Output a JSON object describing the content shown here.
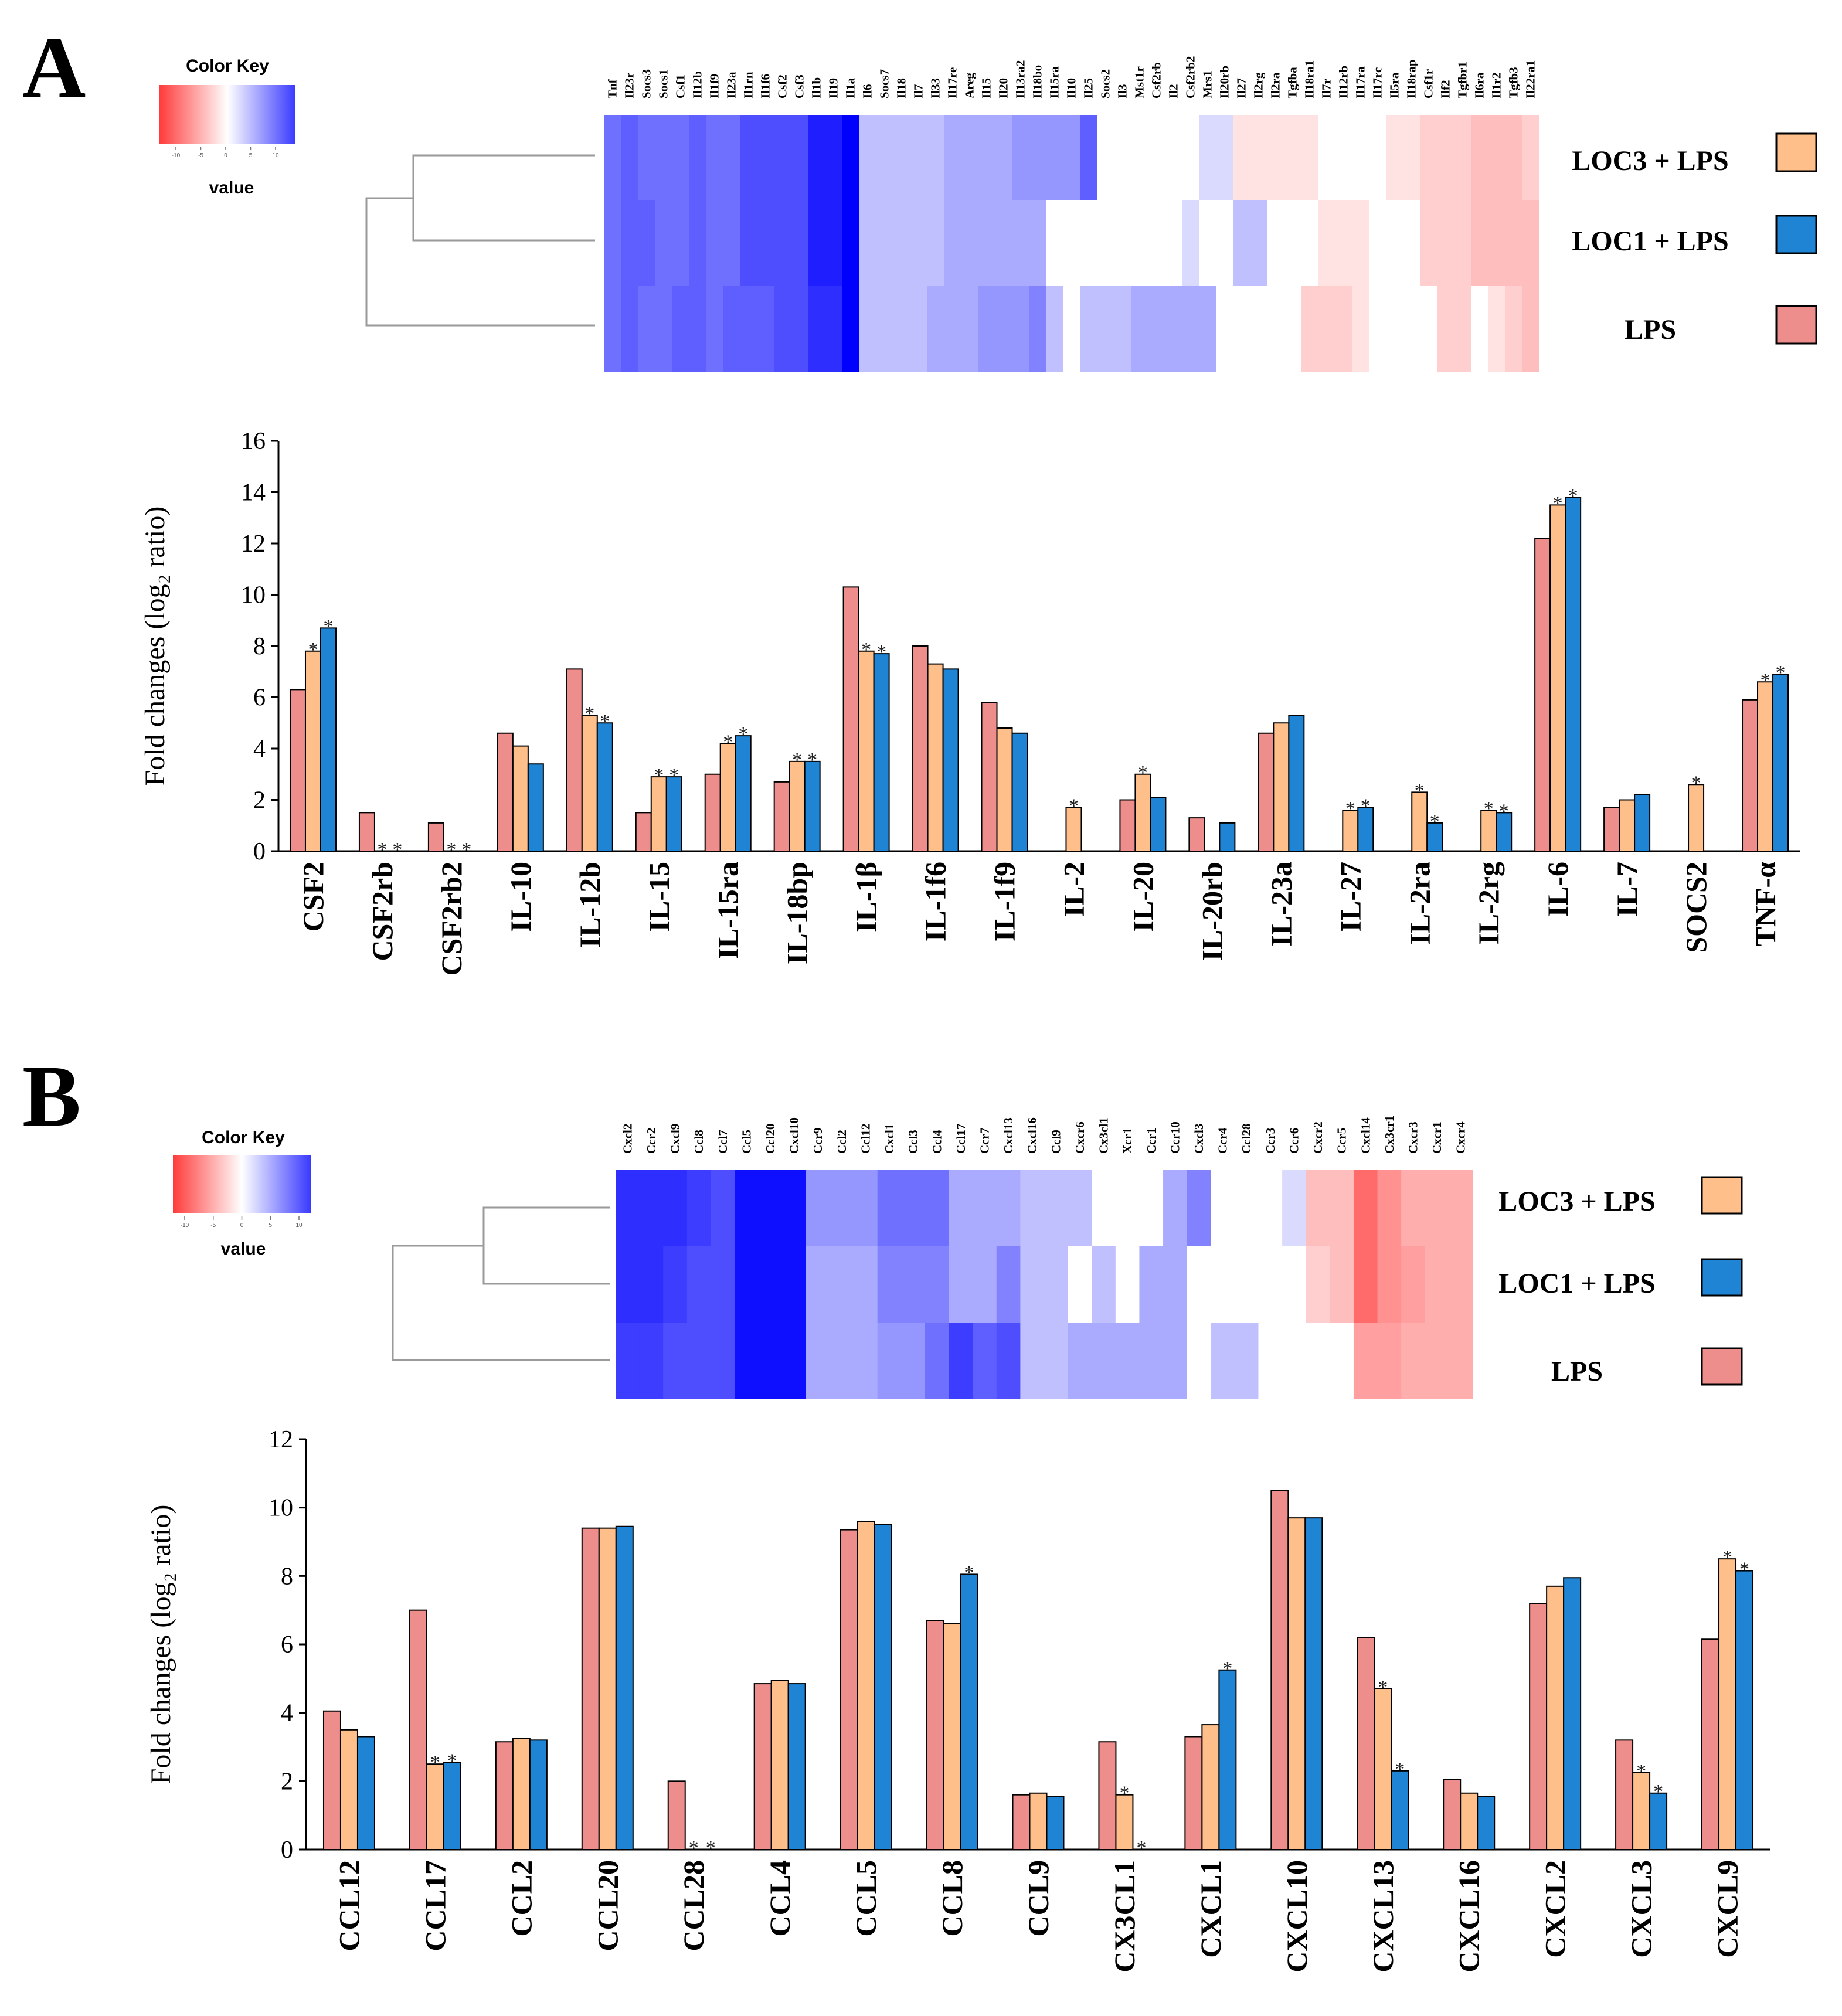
{
  "colors": {
    "LPS": "#EE8E8C",
    "LOC3 + LPS": "#FFBF8A",
    "LOC1 + LPS": "#1F84D4",
    "heat_low": "#FF3B3B",
    "heat_mid": "#FFFFFF",
    "heat_high": "#0000FF",
    "axis": "#000000"
  },
  "panelA": {
    "label": "A",
    "color_key": {
      "title": "Color Key",
      "value_label": "value",
      "ticks": [
        "-10",
        "-5",
        "0",
        "5",
        "10"
      ]
    },
    "heatmap": {
      "columns": [
        "Tnf",
        "Il23r",
        "Socs3",
        "Socs1",
        "Csf1",
        "Il12b",
        "Il1f9",
        "Il23a",
        "Il1rn",
        "Il1f6",
        "Csf2",
        "Csf3",
        "Il1b",
        "Il19",
        "Il1a",
        "Il6",
        "Socs7",
        "Il18",
        "Il7",
        "Il33",
        "Il17re",
        "Areg",
        "Il15",
        "Il20",
        "Il13ra2",
        "Il18bo",
        "Il15ra",
        "Il10",
        "Il25",
        "Socs2",
        "Il3",
        "Mst1r",
        "Csf2rb",
        "Il2",
        "Csf2rb2",
        "Mrs1",
        "Il20rb",
        "Il27",
        "Il2rg",
        "Il2ra",
        "Tgfba",
        "Il18ra1",
        "Il7r",
        "Il12rb",
        "Il17ra",
        "Il17rc",
        "Il5ra",
        "Il18rap",
        "Csf1r",
        "Ilf2",
        "Tgfbr1",
        "Il6ra",
        "Il1r2",
        "Tgfb3",
        "Il22ra1"
      ],
      "rows": [
        "LOC3 + LPS",
        "LOC1 + LPS",
        "LPS"
      ],
      "values": [
        [
          6,
          7,
          6,
          6,
          6,
          7,
          6,
          6,
          8,
          8,
          8,
          8,
          11,
          11,
          13,
          2,
          2,
          2,
          2,
          2,
          3,
          3,
          3,
          3,
          4,
          4,
          4,
          4,
          7,
          0,
          0,
          0,
          0,
          0,
          0,
          1,
          1,
          -1,
          -1,
          -1,
          -1,
          -1,
          0,
          0,
          0,
          0,
          -1,
          -1,
          -2,
          -2,
          -2,
          -3,
          -3,
          -3,
          -2
        ],
        [
          6,
          7,
          7,
          6,
          6,
          7,
          6,
          6,
          8,
          8,
          8,
          8,
          11,
          11,
          13,
          2,
          2,
          2,
          2,
          2,
          3,
          3,
          3,
          3,
          3,
          3,
          0,
          0,
          0,
          0,
          0,
          0,
          0,
          0,
          1,
          0,
          0,
          2,
          2,
          0,
          0,
          0,
          -1,
          -1,
          -1,
          0,
          0,
          0,
          -2,
          -2,
          -2,
          -3,
          -3,
          -3,
          -3
        ],
        [
          6,
          7,
          6,
          6,
          7,
          7,
          6,
          7,
          7,
          7,
          8,
          8,
          10,
          10,
          13,
          2,
          2,
          2,
          2,
          3,
          3,
          3,
          4,
          4,
          4,
          5,
          2,
          0,
          2,
          2,
          2,
          3,
          3,
          3,
          3,
          3,
          0,
          0,
          0,
          0,
          0,
          -2,
          -2,
          -2,
          -1,
          0,
          0,
          0,
          0,
          -2,
          -2,
          0,
          -1,
          -2,
          -3
        ]
      ]
    },
    "chart_data": {
      "type": "bar",
      "categories": [
        "CSF2",
        "CSF2rb",
        "CSF2rb2",
        "IL-10",
        "IL-12b",
        "IL-15",
        "IL-15ra",
        "IL-18bp",
        "IL-1β",
        "IL-1f6",
        "IL-1f9",
        "IL-2",
        "IL-20",
        "IL-20rb",
        "IL-23a",
        "IL-27",
        "IL-2ra",
        "IL-2rg",
        "IL-6",
        "IL-7",
        "SOCS2",
        "TNF-α"
      ],
      "series": [
        {
          "name": "LPS",
          "values": [
            6.3,
            1.5,
            1.1,
            4.6,
            7.1,
            1.5,
            3.0,
            2.7,
            10.3,
            8.0,
            5.8,
            0,
            2.0,
            1.3,
            4.6,
            0,
            0,
            0,
            12.2,
            1.7,
            0,
            5.9
          ]
        },
        {
          "name": "LOC3 + LPS",
          "values": [
            7.8,
            0,
            0,
            4.1,
            5.3,
            2.9,
            4.2,
            3.5,
            7.8,
            7.3,
            4.8,
            1.7,
            3.0,
            0,
            5.0,
            1.6,
            2.3,
            1.6,
            13.5,
            2.0,
            2.6,
            6.6
          ]
        },
        {
          "name": "LOC1 + LPS",
          "values": [
            8.7,
            0,
            0,
            3.4,
            5.0,
            2.9,
            4.5,
            3.5,
            7.7,
            7.1,
            4.6,
            0,
            2.1,
            1.1,
            5.3,
            1.7,
            1.1,
            1.5,
            13.8,
            2.2,
            0,
            6.9
          ]
        }
      ],
      "significance": [
        [
          "",
          "*",
          "*"
        ],
        [
          "",
          "*",
          "*"
        ],
        [
          "",
          "*",
          "*"
        ],
        [
          "",
          "",
          ""
        ],
        [
          "",
          "*",
          "*"
        ],
        [
          "",
          "*",
          "*"
        ],
        [
          "",
          "*",
          "*"
        ],
        [
          "",
          "*",
          "*"
        ],
        [
          "",
          "*",
          "*"
        ],
        [
          "",
          "",
          ""
        ],
        [
          "",
          "",
          ""
        ],
        [
          "",
          "*",
          ""
        ],
        [
          "",
          "*",
          ""
        ],
        [
          "",
          "",
          ""
        ],
        [
          "",
          "",
          ""
        ],
        [
          "",
          "*",
          "*"
        ],
        [
          "",
          "*",
          "*"
        ],
        [
          "",
          "*",
          "*"
        ],
        [
          "",
          "*",
          "*"
        ],
        [
          "",
          "",
          ""
        ],
        [
          "",
          "*",
          ""
        ],
        [
          "",
          "*",
          "*"
        ]
      ],
      "title": "",
      "xlabel": "",
      "ylabel": "Fold changes (log₂ ratio)",
      "ylim": [
        0,
        16
      ],
      "yticks": [
        "0",
        "2",
        "4",
        "6",
        "8",
        "10",
        "12",
        "14",
        "16"
      ]
    }
  },
  "panelB": {
    "label": "B",
    "color_key": {
      "title": "Color Key",
      "value_label": "value",
      "ticks": [
        "-10",
        "-5",
        "0",
        "5",
        "10"
      ]
    },
    "heatmap": {
      "columns": [
        "Cxcl2",
        "Ccr2",
        "Cxcl9",
        "Ccl8",
        "Ccl7",
        "Ccl5",
        "Ccl20",
        "Cxcl10",
        "Ccr9",
        "Ccl2",
        "Ccl12",
        "Cxcl1",
        "Ccl3",
        "Ccl4",
        "Ccl17",
        "Ccr7",
        "Cxcl13",
        "Cxcl16",
        "Ccl9",
        "Cxcr6",
        "Cx3cl1",
        "Xcr1",
        "Ccr1",
        "Ccr10",
        "Cxcl3",
        "Ccr4",
        "Ccl28",
        "Ccr3",
        "Ccr6",
        "Cxcr2",
        "Ccr5",
        "Cxcl14",
        "Cx3cr1",
        "Cxcr3",
        "Cxcr1",
        "Cxcr4"
      ],
      "rows": [
        "LOC3 + LPS",
        "LOC1 + LPS",
        "LPS"
      ],
      "values": [
        [
          10,
          10,
          10,
          9,
          8,
          12,
          12,
          12,
          4,
          4,
          4,
          6,
          6,
          6,
          3,
          3,
          3,
          2,
          2,
          2,
          0,
          0,
          0,
          3,
          5,
          0,
          0,
          0,
          1,
          -3,
          -3,
          -9,
          -6,
          -4,
          -4,
          -4
        ],
        [
          10,
          10,
          9,
          8,
          8,
          12,
          12,
          12,
          3,
          3,
          3,
          5,
          5,
          5,
          3,
          3,
          5,
          2,
          2,
          0,
          2,
          0,
          3,
          3,
          0,
          0,
          0,
          0,
          0,
          -2,
          -3,
          -9,
          -6,
          -5,
          -4,
          -4
        ],
        [
          9,
          9,
          8,
          8,
          8,
          12,
          12,
          12,
          3,
          3,
          3,
          4,
          4,
          6,
          9,
          7,
          8,
          2,
          2,
          3,
          3,
          3,
          3,
          3,
          0,
          2,
          2,
          0,
          0,
          0,
          0,
          -5,
          -5,
          -4,
          -4,
          -4
        ]
      ]
    },
    "chart_data": {
      "type": "bar",
      "categories": [
        "CCL12",
        "CCL17",
        "CCL2",
        "CCL20",
        "CCL28",
        "CCL4",
        "CCL5",
        "CCL8",
        "CCL9",
        "CX3CL1",
        "CXCL1",
        "CXCL10",
        "CXCL13",
        "CXCL16",
        "CXCL2",
        "CXCL3",
        "CXCL9"
      ],
      "series": [
        {
          "name": "LPS",
          "values": [
            4.05,
            7.0,
            3.15,
            9.4,
            2.0,
            4.85,
            9.35,
            6.7,
            1.6,
            3.15,
            3.3,
            10.5,
            6.2,
            2.05,
            7.2,
            3.2,
            6.15
          ]
        },
        {
          "name": "LOC3 + LPS",
          "values": [
            3.5,
            2.5,
            3.25,
            9.4,
            0,
            4.95,
            9.6,
            6.6,
            1.65,
            1.6,
            3.65,
            9.7,
            4.7,
            1.65,
            7.7,
            2.25,
            8.5
          ]
        },
        {
          "name": "LOC1 + LPS",
          "values": [
            3.3,
            2.55,
            3.2,
            9.45,
            0,
            4.85,
            9.5,
            8.05,
            1.55,
            0,
            5.25,
            9.7,
            2.3,
            1.55,
            7.95,
            1.65,
            8.15
          ]
        }
      ],
      "significance": [
        [
          "",
          "",
          ""
        ],
        [
          "",
          "*",
          "*"
        ],
        [
          "",
          "",
          ""
        ],
        [
          "",
          "",
          ""
        ],
        [
          "",
          "*",
          "*"
        ],
        [
          "",
          "",
          ""
        ],
        [
          "",
          "",
          ""
        ],
        [
          "",
          "",
          "*"
        ],
        [
          "",
          "",
          ""
        ],
        [
          "",
          "*",
          "*"
        ],
        [
          "",
          "",
          "*"
        ],
        [
          "",
          "",
          ""
        ],
        [
          "",
          "*",
          "*"
        ],
        [
          "",
          "",
          ""
        ],
        [
          "",
          "",
          ""
        ],
        [
          "",
          "*",
          "*"
        ],
        [
          "",
          "*",
          "*"
        ]
      ],
      "title": "",
      "xlabel": "",
      "ylabel": "Fold changes (log₂ ratio)",
      "ylim": [
        0,
        12
      ],
      "yticks": [
        "0",
        "2",
        "4",
        "6",
        "8",
        "10",
        "12"
      ]
    }
  }
}
